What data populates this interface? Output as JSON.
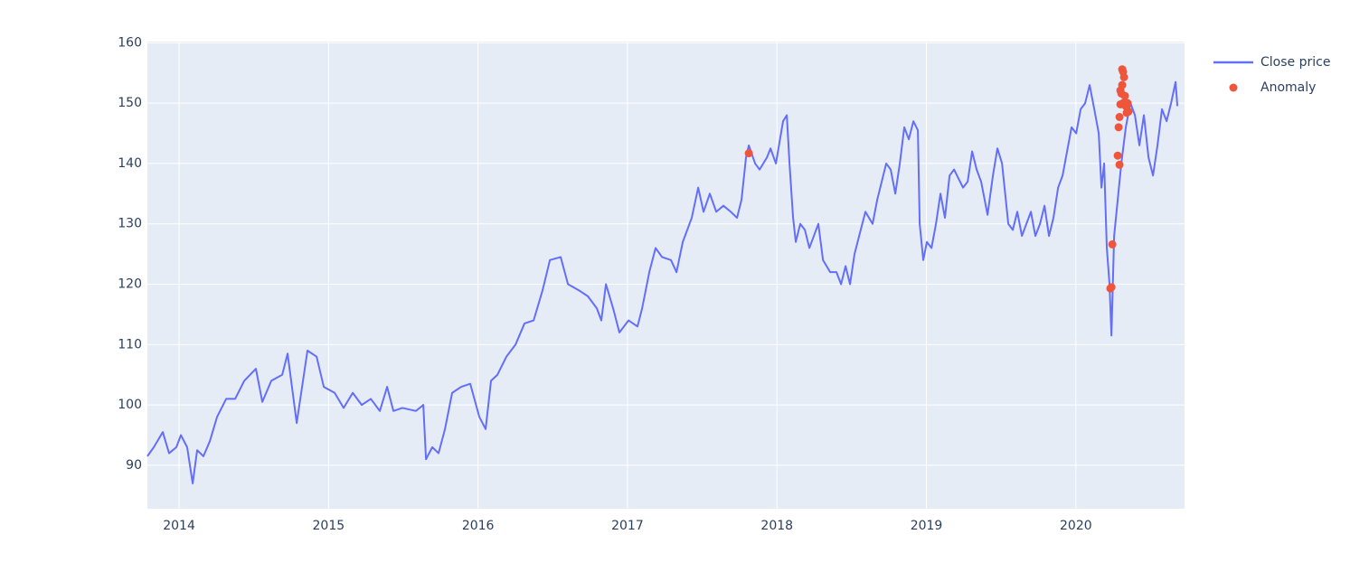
{
  "chart_data": {
    "type": "line",
    "series": [
      {
        "name": "Close price",
        "type": "line",
        "color": "#636efa",
        "x": [
          2013.788,
          2013.831,
          2013.891,
          2013.933,
          2013.982,
          2014.012,
          2014.054,
          2014.091,
          2014.121,
          2014.163,
          2014.206,
          2014.254,
          2014.315,
          2014.375,
          2014.436,
          2014.514,
          2014.557,
          2014.617,
          2014.69,
          2014.726,
          2014.787,
          2014.829,
          2014.859,
          2014.92,
          2014.968,
          2015.041,
          2015.101,
          2015.162,
          2015.222,
          2015.283,
          2015.343,
          2015.392,
          2015.434,
          2015.494,
          2015.585,
          2015.634,
          2015.652,
          2015.694,
          2015.736,
          2015.779,
          2015.827,
          2015.888,
          2015.948,
          2016.009,
          2016.051,
          2016.087,
          2016.13,
          2016.19,
          2016.251,
          2016.311,
          2016.372,
          2016.432,
          2016.481,
          2016.553,
          2016.602,
          2016.674,
          2016.735,
          2016.795,
          2016.825,
          2016.856,
          2016.904,
          2016.946,
          2017.007,
          2017.067,
          2017.098,
          2017.146,
          2017.188,
          2017.231,
          2017.291,
          2017.328,
          2017.37,
          2017.43,
          2017.473,
          2017.509,
          2017.551,
          2017.594,
          2017.642,
          2017.691,
          2017.733,
          2017.763,
          2017.793,
          2017.812,
          2017.854,
          2017.884,
          2017.933,
          2017.957,
          2017.993,
          2018.041,
          2018.066,
          2018.084,
          2018.108,
          2018.126,
          2018.156,
          2018.187,
          2018.217,
          2018.247,
          2018.277,
          2018.308,
          2018.356,
          2018.398,
          2018.429,
          2018.459,
          2018.489,
          2018.519,
          2018.55,
          2018.592,
          2018.64,
          2018.671,
          2018.701,
          2018.731,
          2018.761,
          2018.792,
          2018.822,
          2018.852,
          2018.882,
          2018.913,
          2018.943,
          2018.955,
          2018.979,
          2019.003,
          2019.034,
          2019.064,
          2019.094,
          2019.124,
          2019.155,
          2019.185,
          2019.245,
          2019.276,
          2019.306,
          2019.336,
          2019.366,
          2019.409,
          2019.445,
          2019.475,
          2019.506,
          2019.548,
          2019.578,
          2019.608,
          2019.639,
          2019.699,
          2019.729,
          2019.76,
          2019.79,
          2019.82,
          2019.85,
          2019.881,
          2019.911,
          2019.941,
          2019.971,
          2020.002,
          2020.032,
          2020.062,
          2020.092,
          2020.123,
          2020.153,
          2020.171,
          2020.189,
          2020.207,
          2020.225,
          2020.238,
          2020.256,
          2020.28,
          2020.304,
          2020.334,
          2020.365,
          2020.395,
          2020.425,
          2020.455,
          2020.486,
          2020.516,
          2020.546,
          2020.576,
          2020.607,
          2020.637,
          2020.667,
          2020.679
        ],
        "values": [
          91.5,
          93,
          95.5,
          92,
          93,
          95,
          93,
          87,
          92.5,
          91.5,
          94,
          98,
          101,
          101,
          104,
          106,
          100.5,
          104,
          105,
          108.5,
          97,
          104,
          109,
          108,
          103,
          102,
          99.5,
          102,
          100,
          101,
          99,
          103,
          99,
          99.5,
          99,
          100,
          91,
          93,
          92,
          96,
          102,
          103,
          103.5,
          98,
          96,
          104,
          105,
          108,
          110,
          113.5,
          114,
          119,
          124,
          124.5,
          120,
          119,
          118,
          116,
          114,
          120,
          116,
          112,
          114,
          113,
          116,
          122,
          126,
          124.5,
          124,
          122,
          127,
          131,
          136,
          132,
          135,
          132,
          133,
          132,
          131,
          134,
          141,
          143,
          140,
          139,
          141,
          142.5,
          140,
          147,
          148,
          140,
          131,
          127,
          130,
          129,
          126,
          128,
          130,
          124,
          122,
          122,
          120,
          123,
          120,
          125,
          128,
          132,
          130,
          134,
          137,
          140,
          139,
          135,
          140,
          146,
          144,
          147,
          145.5,
          130,
          124,
          127,
          126,
          130,
          135,
          131,
          138,
          139,
          136,
          137,
          142,
          139,
          137,
          131.5,
          138,
          142.5,
          140,
          130,
          129,
          132,
          128,
          132,
          128,
          130,
          133,
          128,
          131,
          136,
          138,
          142,
          146,
          145,
          149,
          150,
          153,
          149,
          145,
          136,
          140,
          126,
          120,
          111.5,
          128,
          134,
          140,
          146,
          150,
          148,
          143,
          148,
          141,
          138,
          143,
          149,
          147,
          150,
          153.5,
          149.5
        ]
      },
      {
        "name": "Anomaly",
        "type": "scatter",
        "color": "#ef553b",
        "x": [
          2017.812,
          2020.231,
          2020.238,
          2020.244,
          2020.28,
          2020.286,
          2020.292,
          2020.292,
          2020.298,
          2020.298,
          2020.304,
          2020.31,
          2020.31,
          2020.316,
          2020.322,
          2020.316,
          2020.328,
          2020.334,
          2020.34,
          2020.346,
          2020.352
        ],
        "values": [
          141.7,
          119.3,
          119.5,
          126.6,
          141.3,
          146,
          139.8,
          147.7,
          149.8,
          152.1,
          151.6,
          153,
          155.6,
          155.2,
          154.3,
          150,
          151.2,
          149.5,
          148.4,
          150,
          148.6
        ]
      }
    ],
    "xlim": [
      2013.788,
      2020.727
    ],
    "xticks": [
      2014,
      2015,
      2016,
      2017,
      2018,
      2019,
      2020
    ],
    "ylim": [
      82.8,
      160.2
    ],
    "yticks": [
      90,
      100,
      110,
      120,
      130,
      140,
      150,
      160
    ],
    "grid": true,
    "legend": "right"
  }
}
